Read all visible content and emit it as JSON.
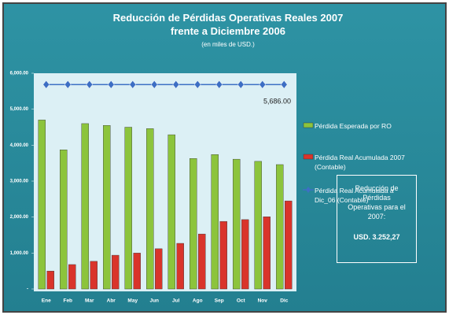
{
  "chart_data": {
    "type": "bar",
    "title": "Reducción de Pérdidas Operativas Reales 2007 frente a Diciembre 2006",
    "subtitle": "(en miles de USD.)",
    "categories": [
      "Ene",
      "Feb",
      "Mar",
      "Abr",
      "May",
      "Jun",
      "Jul",
      "Ago",
      "Sep",
      "Oct",
      "Nov",
      "Dic"
    ],
    "series": [
      {
        "name": "Pérdida Esperada por RO",
        "color": "#8cc43c",
        "type": "bar",
        "values": [
          4700,
          3870,
          4600,
          4550,
          4500,
          4460,
          4290,
          3630,
          3740,
          3610,
          3550,
          3460
        ]
      },
      {
        "name": "Pérdida Real Acumulada 2007 (Contable)",
        "color": "#d9342b",
        "type": "bar",
        "values": [
          500,
          680,
          770,
          940,
          1000,
          1120,
          1270,
          1530,
          1880,
          1930,
          2010,
          2450
        ]
      },
      {
        "name": "Pérdida Real Acumulada a Dic_06 (Contable)",
        "color": "#3d6fc4",
        "type": "line",
        "values": [
          5686,
          5686,
          5686,
          5686,
          5686,
          5686,
          5686,
          5686,
          5686,
          5686,
          5686,
          5686
        ]
      }
    ],
    "annotation": "5,686.00",
    "ylim": [
      0,
      6000
    ],
    "yticks": [
      {
        "value": 0,
        "label": "-"
      },
      {
        "value": 1000,
        "label": "1,000.00"
      },
      {
        "value": 2000,
        "label": "2,000.00"
      },
      {
        "value": 3000,
        "label": "3,000.00"
      },
      {
        "value": 4000,
        "label": "4,000.00"
      },
      {
        "value": 5000,
        "label": "5,000.00"
      },
      {
        "value": 6000,
        "label": "6,000.00"
      }
    ],
    "grid": false,
    "legend_position": "right",
    "summary_box": {
      "label": "Reducción de Pérdidas Operativas para el 2007:",
      "value": "USD. 3.252,27"
    }
  }
}
